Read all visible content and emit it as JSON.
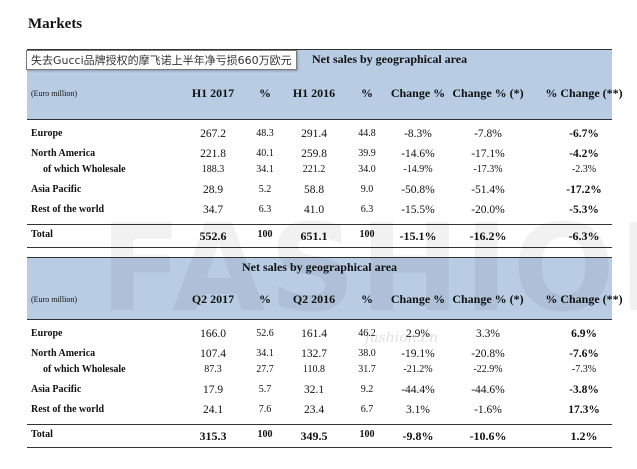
{
  "page_title": "Markets",
  "tooltip": "失去Gucci品牌授权的摩飞诺上半年净亏损660万欧元",
  "watermark": "FASHION",
  "watermark_url": "fashion.cn",
  "h1": {
    "title": "Net sales by geographical area",
    "headers": [
      "(Euro million)",
      "H1 2017",
      "%",
      "H1 2016",
      "%",
      "Change %",
      "Change % (*)",
      "% Change (**)"
    ],
    "rows": [
      {
        "label": "Europe",
        "v": [
          "267.2",
          "48.3",
          "291.4",
          "44.8",
          "-8.3%",
          "-7.8%",
          "-6.7%"
        ]
      },
      {
        "label": "North America",
        "v": [
          "221.8",
          "40.1",
          "259.8",
          "39.9",
          "-14.6%",
          "-17.1%",
          "-4.2%"
        ]
      },
      {
        "label": "of which Wholesale",
        "v": [
          "188.3",
          "34.1",
          "221.2",
          "34.0",
          "-14.9%",
          "-17.3%",
          "-2.3%"
        ]
      },
      {
        "label": "Asia Pacific",
        "v": [
          "28.9",
          "5.2",
          "58.8",
          "9.0",
          "-50.8%",
          "-51.4%",
          "-17.2%"
        ]
      },
      {
        "label": "Rest of the world",
        "v": [
          "34.7",
          "6.3",
          "41.0",
          "6.3",
          "-15.5%",
          "-20.0%",
          "-5.3%"
        ]
      }
    ],
    "total": {
      "label": "Total",
      "v": [
        "552.6",
        "100",
        "651.1",
        "100",
        "-15.1%",
        "-16.2%",
        "-6.3%"
      ]
    }
  },
  "q2": {
    "title": "Net sales by geographical area",
    "headers": [
      "(Euro million)",
      "Q2 2017",
      "%",
      "Q2 2016",
      "%",
      "Change %",
      "Change % (*)",
      "% Change (**)"
    ],
    "rows": [
      {
        "label": "Europe",
        "v": [
          "166.0",
          "52.6",
          "161.4",
          "46.2",
          "2.9%",
          "3.3%",
          "6.9%"
        ]
      },
      {
        "label": "North America",
        "v": [
          "107.4",
          "34.1",
          "132.7",
          "38.0",
          "-19.1%",
          "-20.8%",
          "-7.6%"
        ]
      },
      {
        "label": "of which Wholesale",
        "v": [
          "87.3",
          "27.7",
          "110.8",
          "31.7",
          "-21.2%",
          "-22.9%",
          "-7.3%"
        ]
      },
      {
        "label": "Asia Pacific",
        "v": [
          "17.9",
          "5.7",
          "32.1",
          "9.2",
          "-44.4%",
          "-44.6%",
          "-3.8%"
        ]
      },
      {
        "label": "Rest of the world",
        "v": [
          "24.1",
          "7.6",
          "23.4",
          "6.7",
          "3.1%",
          "-1.6%",
          "17.3%"
        ]
      }
    ],
    "total": {
      "label": "Total",
      "v": [
        "315.3",
        "100",
        "349.5",
        "100",
        "-9.8%",
        "-10.6%",
        "1.2%"
      ]
    }
  }
}
